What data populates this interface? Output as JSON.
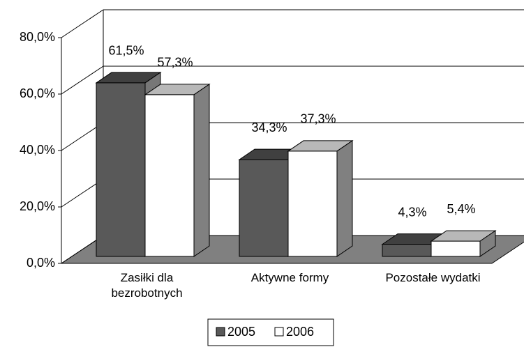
{
  "chart_data": {
    "type": "bar3d",
    "categories": [
      "Zasiłki dla bezrobotnych",
      "Aktywne formy",
      "Pozostałe wydatki"
    ],
    "series": [
      {
        "name": "2005",
        "color": "#595959",
        "values": [
          61.5,
          34.3,
          4.3
        ],
        "value_labels": [
          "61,5%",
          "34,3%",
          "4,3%"
        ]
      },
      {
        "name": "2006",
        "color": "#ffffff",
        "values": [
          57.3,
          37.3,
          5.4
        ],
        "value_labels": [
          "57,3%",
          "37,3%",
          "5,4%"
        ]
      }
    ],
    "ylim": [
      0,
      80
    ],
    "yticks": [
      {
        "value": 0,
        "label": "0,0%"
      },
      {
        "value": 20,
        "label": "20,0%"
      },
      {
        "value": 40,
        "label": "40,0%"
      },
      {
        "value": 60,
        "label": "60,0%"
      },
      {
        "value": 80,
        "label": "80,0%"
      }
    ],
    "grid": true,
    "floor_color": "#808080",
    "legend": "bottom"
  }
}
